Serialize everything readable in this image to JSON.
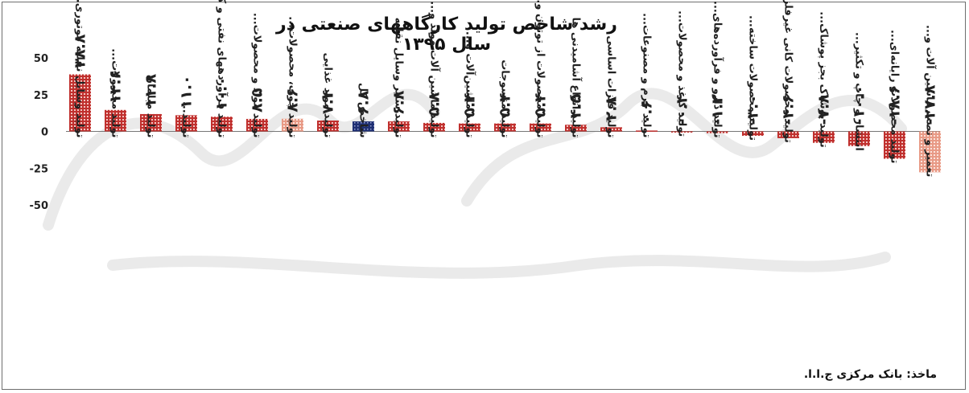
{
  "title": "رشد شاخص تولید کارگاههای صنعتی در سال ۱۳۹۵",
  "source": "ماخذ: بانک مرکزی ج.ا.ا.",
  "colors": {
    "bar": "#c0302e",
    "bar_hatch": "#f2c4c0",
    "highlight": "#1e2f73",
    "light_bar": "#e89a86",
    "text": "#222222"
  },
  "chart_data": {
    "type": "bar",
    "title": "رشد شاخص تولید کارگاههای صنعتی در سال ۱۳۹۵",
    "ylim": [
      -50,
      50
    ],
    "yticks": [
      "50",
      "25",
      "0",
      "-25",
      "-50"
    ],
    "grid": false,
    "categories": [
      "تولید وسایل نقلیه موتوری...",
      "تولید محصولات...",
      "تولید مبلمان",
      "تولید...",
      "تولید فرآوردههای نفتی و کک",
      "تولید مواد و محصولات...",
      "تولید چوب، محصولات...",
      "تولید مواد غذایی",
      "شاخص کل",
      "تولید سایر وسایل نقلیه",
      "تولید ماشین آلات مولد و...",
      "تولید ماشین‌آلات و...",
      "تولید منسوجات",
      "تولید محصولات از توتون و...",
      "تولید انواع آشامیدنی ها",
      "تولید فلزات اساسی",
      "تولید چرم و مصنوعات...",
      "تولید کاغذ و محصولات...",
      "تولید دارو و فرآورده‌های...",
      "تولید محصولات ساخته...",
      "تولید محصولات کانی غیرفلزی",
      "تولید پوشاک بجز پوشاک...",
      "انتشار و چاپ و تکثیر...",
      "تولید محصولات رایانه‌ای...",
      "تعمیر و نصب ماشین آلات و..."
    ],
    "values": [
      38.8,
      14.6,
      11.8,
      11.0,
      10.0,
      8.5,
      8.6,
      7.4,
      6.8,
      6.8,
      5.8,
      5.4,
      5.4,
      5.4,
      4.5,
      2.8,
      0.6,
      -0.4,
      -1.2,
      -3.0,
      -4.6,
      -7.8,
      -10.0,
      -18.6,
      -27.8
    ],
    "value_labels": [
      "۳۸.۸",
      "۱۴.۶",
      "۱۱.۸",
      "۱۱.۰",
      "۱۰.۰",
      "۸.۵",
      "۸.۶",
      "۷.۴",
      "۶.۸",
      "۶.۸",
      "۵.۸",
      "۵.۴",
      "۵.۴",
      "۵.۴",
      "۴.۵",
      "۲.۸",
      "۰.۶",
      "-۰.۴",
      "-۱.۲",
      "-۳.۰",
      "-۴.۶",
      "-۷.۸",
      "-۱۰.۰",
      "-۱۸.۶",
      "-۲۷.۸"
    ],
    "styles": [
      "dark",
      "dark",
      "dark",
      "dark",
      "dark",
      "dark",
      "light",
      "dark",
      "highlight",
      "dark",
      "dark",
      "dark",
      "dark",
      "dark",
      "dark",
      "dark",
      "dark",
      "dark",
      "dark",
      "dark",
      "dark",
      "dark",
      "dark",
      "dark",
      "light"
    ]
  }
}
